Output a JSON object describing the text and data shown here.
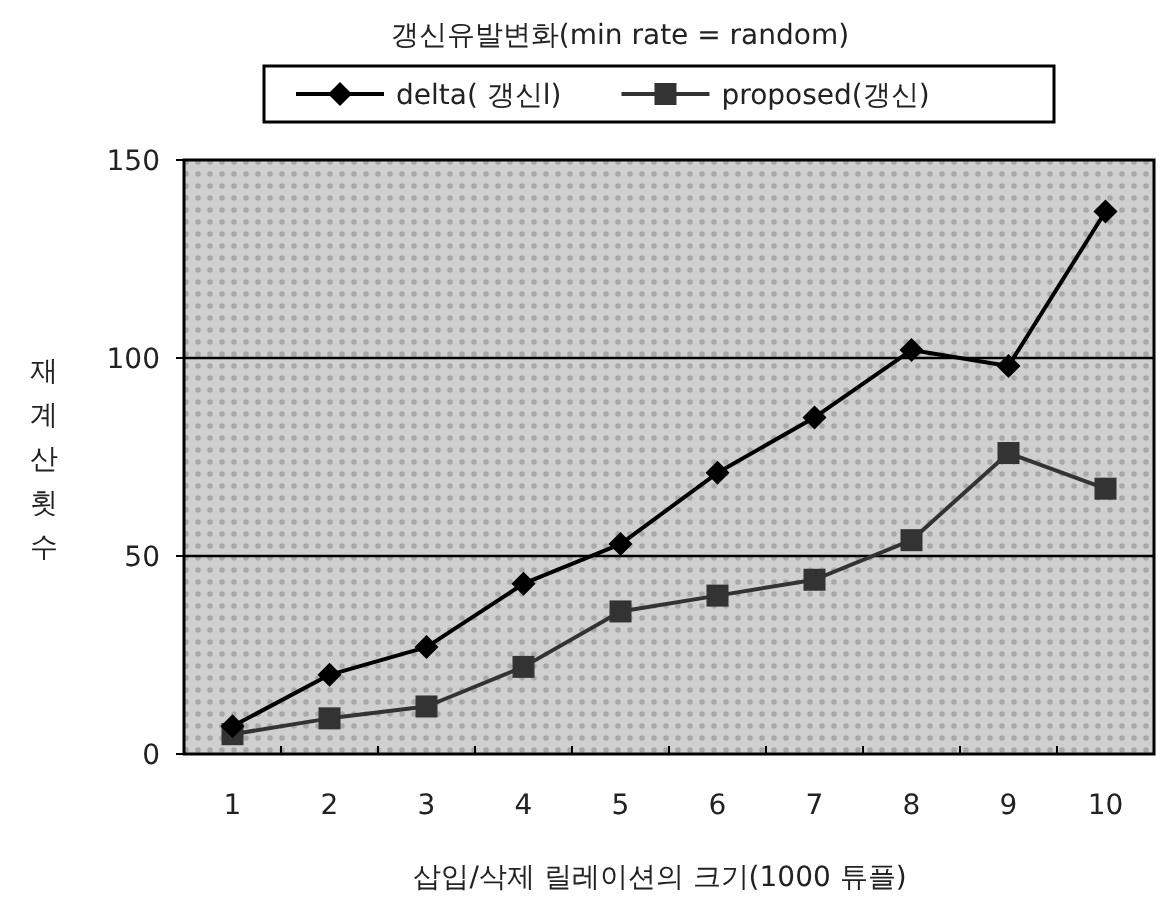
{
  "chart_data": {
    "type": "line",
    "title": "갱신유발변화(min rate = random)",
    "xlabel": "삽입/삭제 릴레이션의 크기(1000 튜플)",
    "ylabel": "재계산횟수",
    "categories": [
      "1",
      "2",
      "3",
      "4",
      "5",
      "6",
      "7",
      "8",
      "9",
      "10"
    ],
    "series": [
      {
        "name": "delta( 갱신l)",
        "color": "#000000",
        "marker": "diamond",
        "values": [
          7,
          20,
          27,
          43,
          53,
          71,
          85,
          102,
          98,
          137
        ]
      },
      {
        "name": "proposed(갱신)",
        "color": "#333333",
        "marker": "square",
        "values": [
          5,
          9,
          12,
          22,
          36,
          40,
          44,
          54,
          76,
          67
        ]
      }
    ],
    "ylim": [
      0,
      150
    ],
    "yticks": [
      0,
      50,
      100,
      150
    ],
    "grid": "y",
    "legend": "top",
    "line_style": "solid"
  }
}
